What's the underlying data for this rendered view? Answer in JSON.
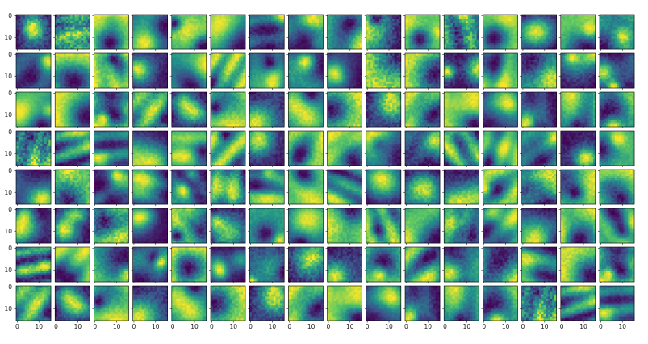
{
  "chart_data": {
    "type": "heatmap",
    "title": "",
    "description_grid": {
      "rows": 8,
      "cols": 16
    },
    "image_size": 16,
    "colormap": "viridis",
    "colormap_stops": [
      "#440154",
      "#3b528b",
      "#21918c",
      "#5ec962",
      "#fde725"
    ],
    "x_ticks": [
      0,
      10
    ],
    "y_ticks": [
      0,
      10
    ],
    "x_tick_labels": [
      "0",
      "10"
    ],
    "y_tick_labels": [
      "0",
      "10"
    ],
    "tick_labels_shown_on": "left column (y) and bottom row (x)"
  }
}
